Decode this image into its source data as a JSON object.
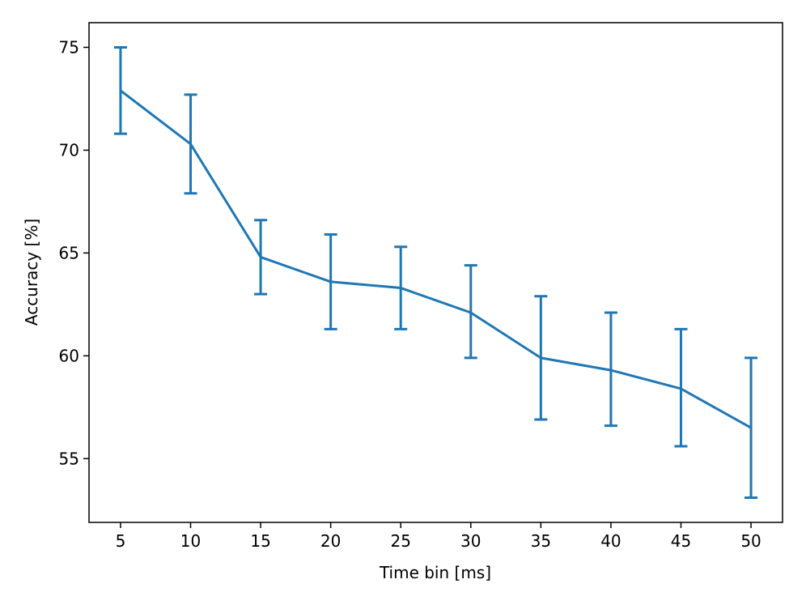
{
  "chart_data": {
    "type": "line",
    "title": "",
    "xlabel": "Time bin [ms]",
    "ylabel": "Accuracy [%]",
    "x": [
      5,
      10,
      15,
      20,
      25,
      30,
      35,
      40,
      45,
      50
    ],
    "series": [
      {
        "name": "Accuracy",
        "values": [
          72.9,
          70.3,
          64.8,
          63.6,
          63.3,
          62.1,
          59.9,
          59.3,
          58.4,
          56.5
        ],
        "err_low": [
          70.8,
          67.9,
          63.0,
          61.3,
          61.3,
          59.9,
          56.9,
          56.6,
          55.6,
          53.1
        ],
        "err_high": [
          75.0,
          72.7,
          66.6,
          65.9,
          65.3,
          64.4,
          62.9,
          62.1,
          61.3,
          59.9
        ],
        "color": "#1f77b4"
      }
    ],
    "xlim": [
      2.75,
      52.25
    ],
    "ylim": [
      51.9,
      76.2
    ],
    "xticks": [
      "5",
      "10",
      "15",
      "20",
      "25",
      "30",
      "35",
      "40",
      "45",
      "50"
    ],
    "yticks": [
      "55",
      "60",
      "65",
      "70",
      "75"
    ],
    "grid": false,
    "legend": "none"
  }
}
